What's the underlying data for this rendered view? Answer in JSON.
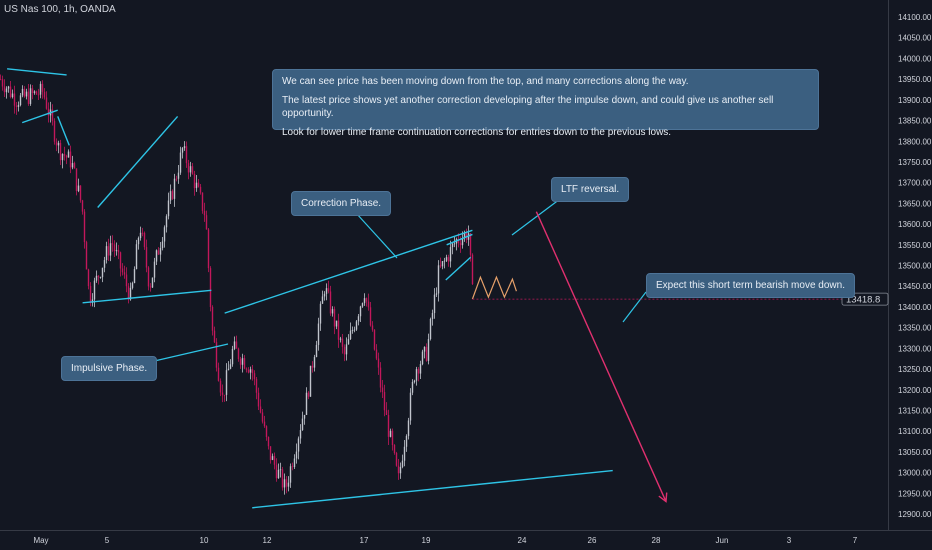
{
  "symbol_title": "US Nas 100, 1h, OANDA",
  "colors": {
    "background": "#131722",
    "trendline": "#2ec4e6",
    "arrow": "#e0306f",
    "forecast_path": "#e6a06a",
    "candle_up": "#c0c4cc",
    "candle_down": "#c2185b",
    "callout_bg": "#3b5f80",
    "axis_text": "#d1d4dc"
  },
  "callouts": {
    "summary": {
      "line1": "We can see price has been moving down from the top, and many corrections along the way.",
      "line2": "The latest price shows yet another correction developing after the impulse down, and could give us another sell opportunity.",
      "line3": "Look for lower time frame continuation corrections for entries down to the previous lows."
    },
    "correction_phase": "Correction Phase.",
    "ltf_reversal": "LTF reversal.",
    "impulsive_phase": "Impulsive Phase.",
    "expect_move": "Expect this short term bearish move down."
  },
  "chart_data": {
    "type": "candlestick",
    "title": "US Nas 100, 1h, OANDA",
    "y_axis": {
      "range": [
        12875,
        14125
      ],
      "ticks": [
        14100,
        14050,
        14000,
        13950,
        13900,
        13850,
        13800,
        13750,
        13700,
        13650,
        13600,
        13550,
        13500,
        13450,
        13400,
        13350,
        13300,
        13250,
        13200,
        13150,
        13100,
        13050,
        13000,
        12950,
        12900
      ],
      "tick_labels": [
        "14100.00",
        "14050.00",
        "14000.00",
        "13950.00",
        "13900.00",
        "13850.00",
        "13800.00",
        "13750.00",
        "13700.00",
        "13650.00",
        "13600.00",
        "13550.00",
        "13500.00",
        "13450.00",
        "13400.00",
        "13350.00",
        "13300.00",
        "13250.00",
        "13200.00",
        "13150.00",
        "13100.00",
        "13050.00",
        "13000.00",
        "12950.00",
        "12900.00"
      ]
    },
    "x_axis": {
      "tick_labels": [
        "May",
        "5",
        "10",
        "12",
        "17",
        "19",
        "24",
        "26",
        "28",
        "Jun",
        "3",
        "7"
      ]
    },
    "last_price": 13418.8,
    "last_price_label": "13418.8",
    "price_path": [
      [
        0,
        13950
      ],
      [
        0.018,
        13900
      ],
      [
        0.048,
        13920
      ],
      [
        0.066,
        13780
      ],
      [
        0.08,
        13750
      ],
      [
        0.092,
        13640
      ],
      [
        0.1,
        13420
      ],
      [
        0.125,
        13560
      ],
      [
        0.147,
        13420
      ],
      [
        0.157,
        13600
      ],
      [
        0.168,
        13450
      ],
      [
        0.187,
        13620
      ],
      [
        0.205,
        13780
      ],
      [
        0.219,
        13700
      ],
      [
        0.231,
        13620
      ],
      [
        0.238,
        13350
      ],
      [
        0.25,
        13180
      ],
      [
        0.262,
        13300
      ],
      [
        0.283,
        13250
      ],
      [
        0.302,
        13050
      ],
      [
        0.321,
        12960
      ],
      [
        0.345,
        13180
      ],
      [
        0.365,
        13450
      ],
      [
        0.387,
        13280
      ],
      [
        0.41,
        13440
      ],
      [
        0.432,
        13160
      ],
      [
        0.448,
        12980
      ],
      [
        0.467,
        13250
      ],
      [
        0.48,
        13290
      ],
      [
        0.493,
        13480
      ],
      [
        0.513,
        13560
      ],
      [
        0.527,
        13580
      ],
      [
        0.532,
        13418.8
      ]
    ],
    "trendlines": [
      {
        "from": [
          0.008,
          13975
        ],
        "to": [
          0.075,
          13960
        ]
      },
      {
        "from": [
          0.025,
          13845
        ],
        "to": [
          0.065,
          13875
        ]
      },
      {
        "from": [
          0.065,
          13860
        ],
        "to": [
          0.078,
          13790
        ]
      },
      {
        "from": [
          0.11,
          13640
        ],
        "to": [
          0.2,
          13860
        ]
      },
      {
        "from": [
          0.093,
          13410
        ],
        "to": [
          0.238,
          13440
        ]
      },
      {
        "from": [
          0.253,
          13385
        ],
        "to": [
          0.532,
          13585
        ]
      },
      {
        "from": [
          0.503,
          13550
        ],
        "to": [
          0.532,
          13575
        ]
      },
      {
        "from": [
          0.502,
          13465
        ],
        "to": [
          0.53,
          13520
        ]
      },
      {
        "from": [
          0.284,
          12915
        ],
        "to": [
          0.69,
          13005
        ]
      }
    ],
    "forecast_arrow": {
      "from": [
        0.604,
        13630
      ],
      "to": [
        0.75,
        12930
      ]
    }
  }
}
